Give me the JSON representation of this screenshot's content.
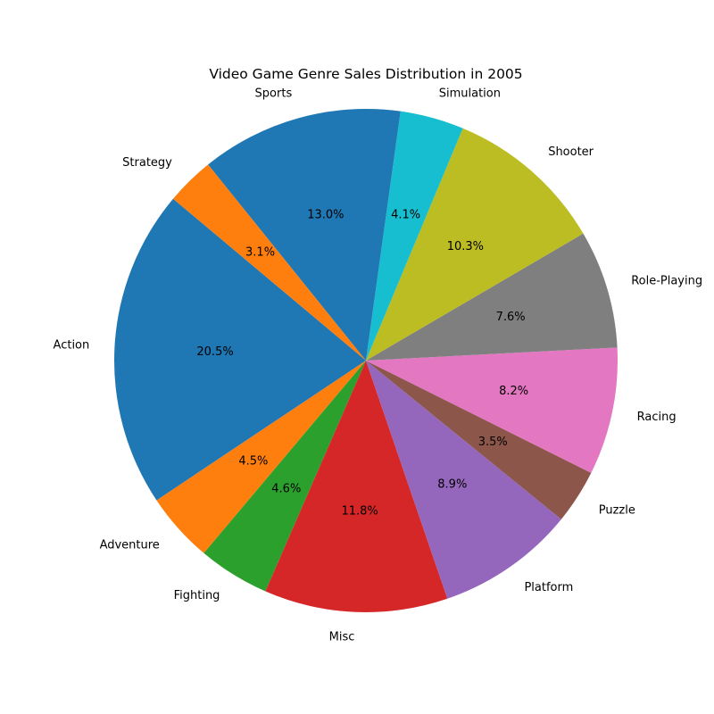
{
  "chart_data": {
    "type": "pie",
    "title": "Video Game Genre Sales Distribution in 2005",
    "start_angle_deg": 140,
    "direction": "counterclockwise",
    "slices": [
      {
        "label": "Action",
        "value": 20.5,
        "pct_label": "20.5%",
        "color": "#1f77b4"
      },
      {
        "label": "Adventure",
        "value": 4.5,
        "pct_label": "4.5%",
        "color": "#ff7f0e"
      },
      {
        "label": "Fighting",
        "value": 4.6,
        "pct_label": "4.6%",
        "color": "#2ca02c"
      },
      {
        "label": "Misc",
        "value": 11.8,
        "pct_label": "11.8%",
        "color": "#d62728"
      },
      {
        "label": "Platform",
        "value": 8.9,
        "pct_label": "8.9%",
        "color": "#9467bd"
      },
      {
        "label": "Puzzle",
        "value": 3.5,
        "pct_label": "3.5%",
        "color": "#8c564b"
      },
      {
        "label": "Racing",
        "value": 8.2,
        "pct_label": "8.2%",
        "color": "#e377c2"
      },
      {
        "label": "Role-Playing",
        "value": 7.6,
        "pct_label": "7.6%",
        "color": "#7f7f7f"
      },
      {
        "label": "Shooter",
        "value": 10.3,
        "pct_label": "10.3%",
        "color": "#bcbd22"
      },
      {
        "label": "Simulation",
        "value": 4.1,
        "pct_label": "4.1%",
        "color": "#17becf"
      },
      {
        "label": "Sports",
        "value": 13.0,
        "pct_label": "13.0%",
        "color": "#1f77b4"
      },
      {
        "label": "Strategy",
        "value": 3.1,
        "pct_label": "3.1%",
        "color": "#ff7f0e"
      }
    ]
  }
}
